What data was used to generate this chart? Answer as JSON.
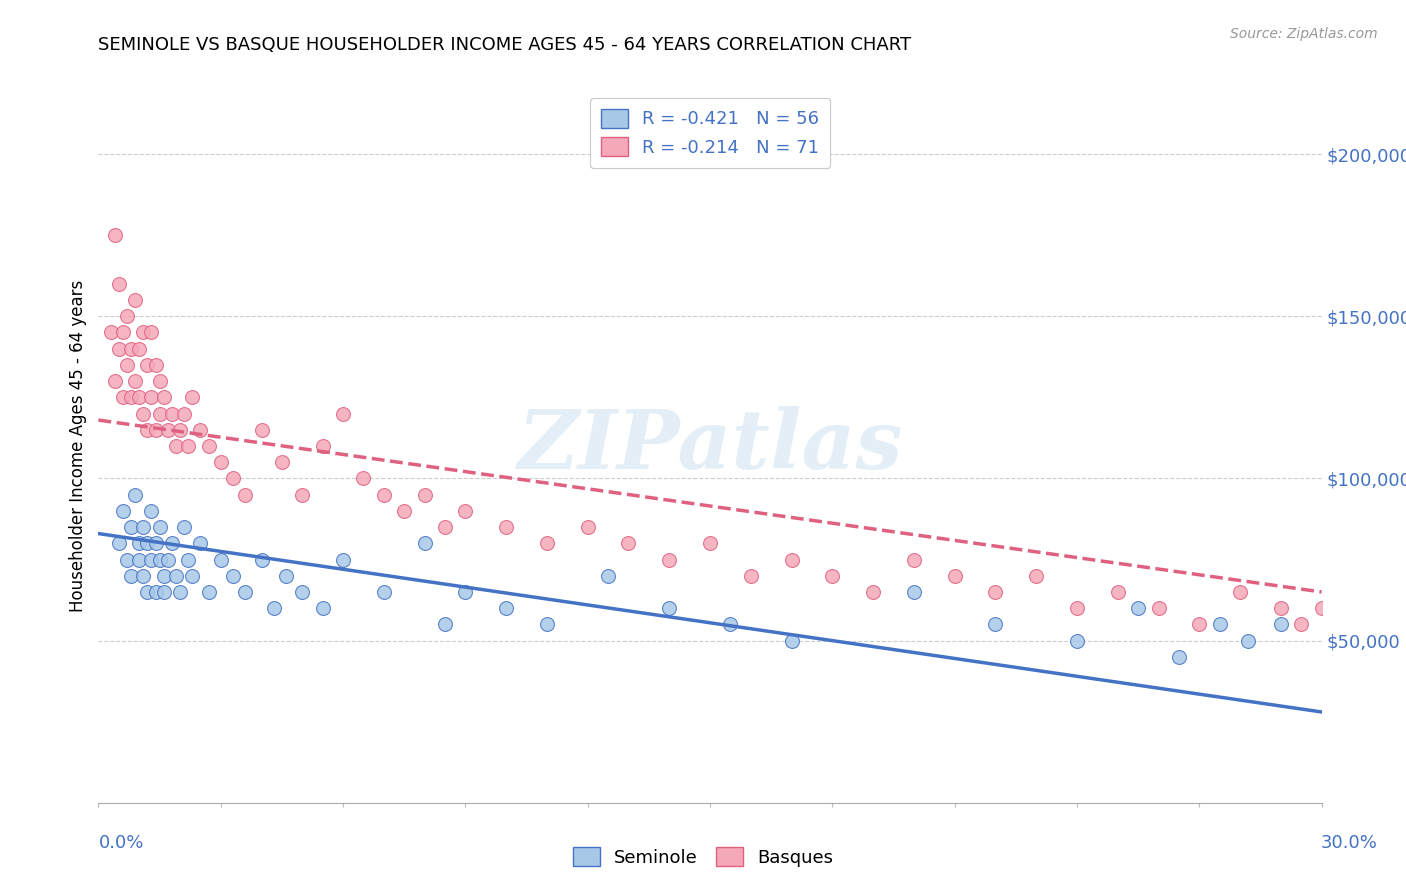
{
  "title": "SEMINOLE VS BASQUE HOUSEHOLDER INCOME AGES 45 - 64 YEARS CORRELATION CHART",
  "source": "Source: ZipAtlas.com",
  "ylabel": "Householder Income Ages 45 - 64 years",
  "xlim": [
    0.0,
    0.3
  ],
  "ylim": [
    0,
    220000
  ],
  "seminole_color": "#a8c8e8",
  "basque_color": "#f4a8b8",
  "seminole_line_color": "#4472c4",
  "basque_line_color": "#e06080",
  "legend_label_seminole": "R = -0.421   N = 56",
  "legend_label_basque": "R = -0.214   N = 71",
  "watermark": "ZIPatlas",
  "seminole_x": [
    0.005,
    0.006,
    0.007,
    0.008,
    0.008,
    0.009,
    0.01,
    0.01,
    0.011,
    0.011,
    0.012,
    0.012,
    0.013,
    0.013,
    0.014,
    0.014,
    0.015,
    0.015,
    0.016,
    0.016,
    0.017,
    0.018,
    0.019,
    0.02,
    0.021,
    0.022,
    0.023,
    0.025,
    0.027,
    0.03,
    0.033,
    0.036,
    0.04,
    0.043,
    0.046,
    0.05,
    0.055,
    0.06,
    0.07,
    0.08,
    0.085,
    0.09,
    0.1,
    0.11,
    0.125,
    0.14,
    0.155,
    0.17,
    0.2,
    0.22,
    0.24,
    0.255,
    0.265,
    0.275,
    0.282,
    0.29
  ],
  "seminole_y": [
    80000,
    90000,
    75000,
    85000,
    70000,
    95000,
    80000,
    75000,
    70000,
    85000,
    65000,
    80000,
    90000,
    75000,
    65000,
    80000,
    75000,
    85000,
    70000,
    65000,
    75000,
    80000,
    70000,
    65000,
    85000,
    75000,
    70000,
    80000,
    65000,
    75000,
    70000,
    65000,
    75000,
    60000,
    70000,
    65000,
    60000,
    75000,
    65000,
    80000,
    55000,
    65000,
    60000,
    55000,
    70000,
    60000,
    55000,
    50000,
    65000,
    55000,
    50000,
    60000,
    45000,
    55000,
    50000,
    55000
  ],
  "basque_x": [
    0.003,
    0.004,
    0.004,
    0.005,
    0.005,
    0.006,
    0.006,
    0.007,
    0.007,
    0.008,
    0.008,
    0.009,
    0.009,
    0.01,
    0.01,
    0.011,
    0.011,
    0.012,
    0.012,
    0.013,
    0.013,
    0.014,
    0.014,
    0.015,
    0.015,
    0.016,
    0.017,
    0.018,
    0.019,
    0.02,
    0.021,
    0.022,
    0.023,
    0.025,
    0.027,
    0.03,
    0.033,
    0.036,
    0.04,
    0.045,
    0.05,
    0.055,
    0.06,
    0.065,
    0.07,
    0.075,
    0.08,
    0.085,
    0.09,
    0.1,
    0.11,
    0.12,
    0.13,
    0.14,
    0.15,
    0.16,
    0.17,
    0.18,
    0.19,
    0.2,
    0.21,
    0.22,
    0.23,
    0.24,
    0.25,
    0.26,
    0.27,
    0.28,
    0.29,
    0.295,
    0.3
  ],
  "basque_y": [
    145000,
    175000,
    130000,
    140000,
    160000,
    125000,
    145000,
    135000,
    150000,
    140000,
    125000,
    155000,
    130000,
    140000,
    125000,
    145000,
    120000,
    135000,
    115000,
    145000,
    125000,
    135000,
    115000,
    130000,
    120000,
    125000,
    115000,
    120000,
    110000,
    115000,
    120000,
    110000,
    125000,
    115000,
    110000,
    105000,
    100000,
    95000,
    115000,
    105000,
    95000,
    110000,
    120000,
    100000,
    95000,
    90000,
    95000,
    85000,
    90000,
    85000,
    80000,
    85000,
    80000,
    75000,
    80000,
    70000,
    75000,
    70000,
    65000,
    75000,
    70000,
    65000,
    70000,
    60000,
    65000,
    60000,
    55000,
    65000,
    60000,
    55000,
    60000
  ]
}
